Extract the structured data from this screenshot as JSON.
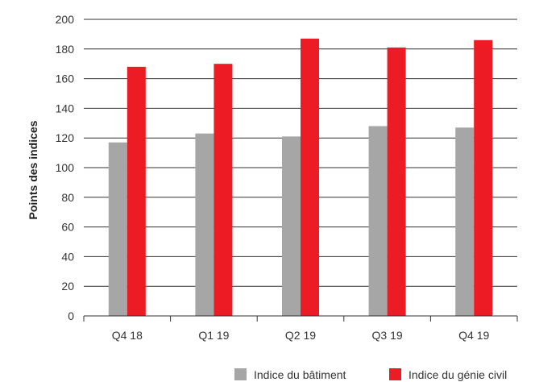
{
  "chart_data": {
    "type": "bar",
    "categories": [
      "Q4 18",
      "Q1 19",
      "Q2 19",
      "Q3 19",
      "Q4 19"
    ],
    "series": [
      {
        "name": "Indice du bâtiment",
        "values": [
          117,
          123,
          121,
          128,
          127
        ],
        "color": "#a6a6a6"
      },
      {
        "name": "Indice du génie civil",
        "values": [
          168,
          170,
          187,
          181,
          186
        ],
        "color": "#ed1c24"
      }
    ],
    "ylabel": "Points des indices",
    "xlabel": "",
    "ylim": [
      0,
      200
    ],
    "yticks": [
      0,
      20,
      40,
      60,
      80,
      100,
      120,
      140,
      160,
      180,
      200
    ],
    "grid": true,
    "legend_position": "bottom-right"
  }
}
